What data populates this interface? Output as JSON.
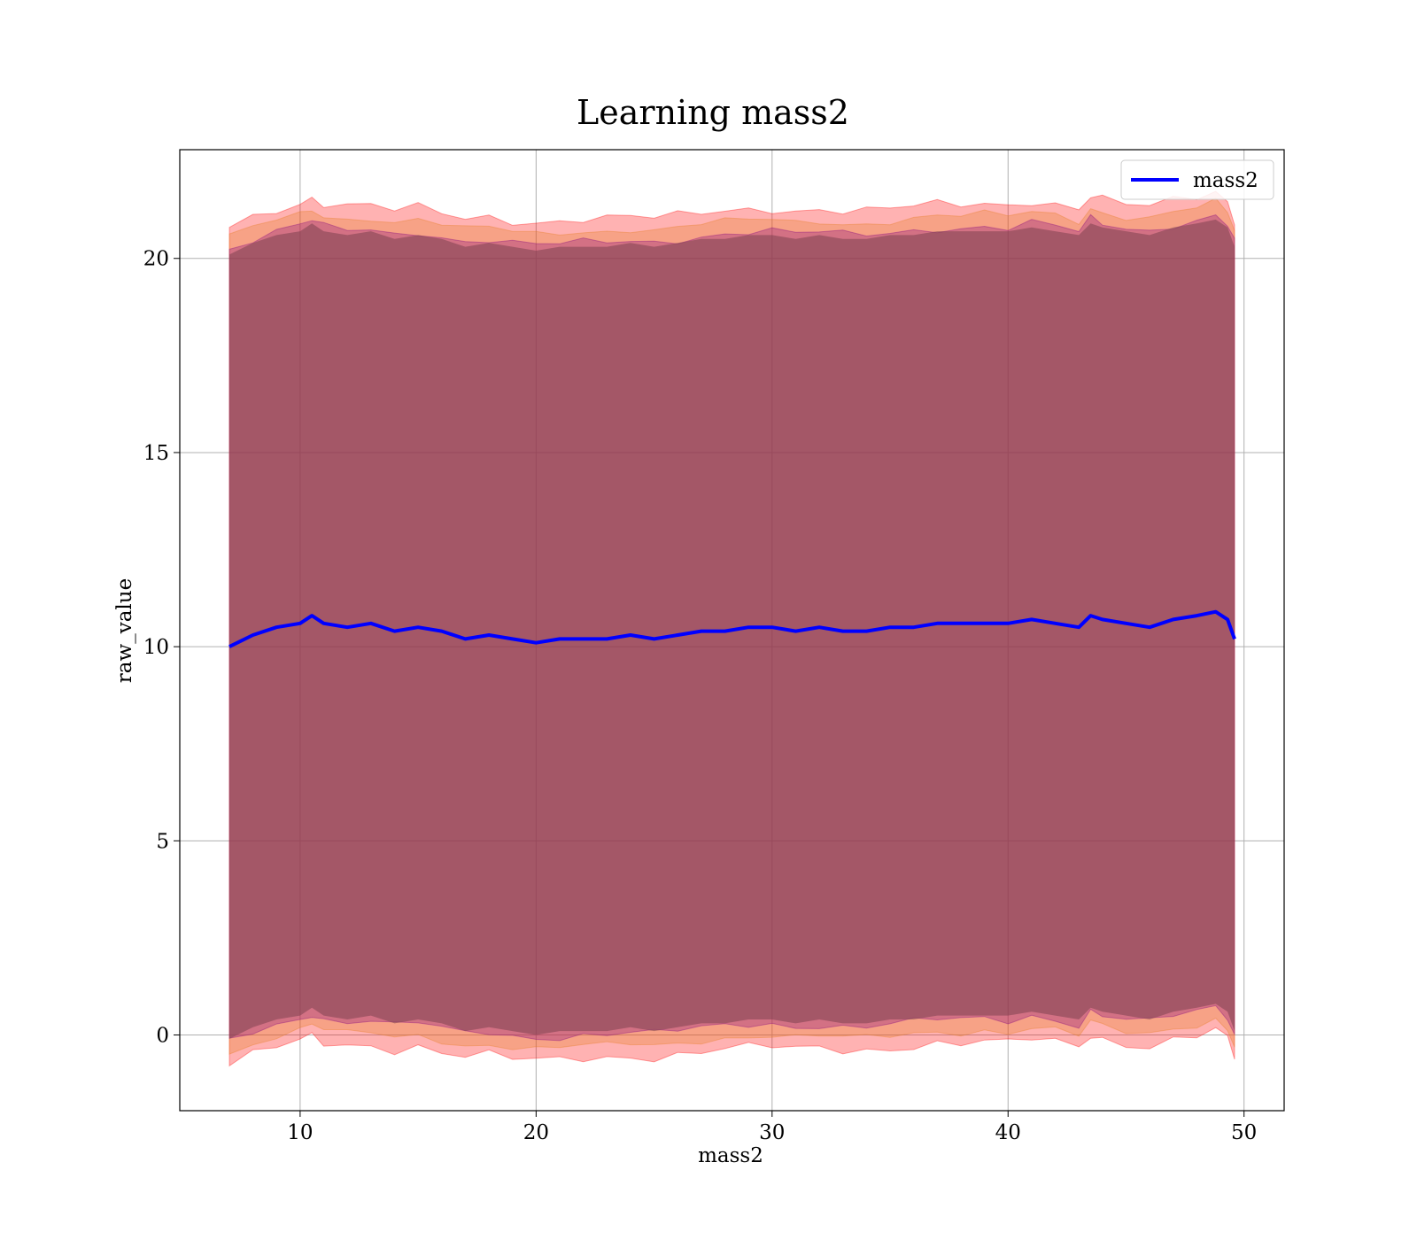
{
  "chart_data": {
    "type": "line",
    "title": "Learning mass2",
    "xlabel": "mass2",
    "ylabel": "raw_value",
    "xlim": [
      4.9,
      51.7
    ],
    "ylim": [
      -1.95,
      22.8
    ],
    "x_ticks": [
      10,
      20,
      30,
      40,
      50
    ],
    "y_ticks": [
      0,
      5,
      10,
      15,
      20
    ],
    "grid": true,
    "legend": {
      "placement": "top-right",
      "entries": [
        "mass2"
      ]
    },
    "colors": {
      "line": "#0000ff",
      "band_outer": "#ff0000",
      "band_middle": "#e67e22",
      "band_inner": "#800080"
    },
    "series": [
      {
        "name": "mass2",
        "x": [
          7.0,
          8.0,
          9.0,
          10.0,
          10.5,
          11.0,
          12.0,
          13.0,
          14.0,
          15.0,
          16.0,
          17.0,
          18.0,
          19.0,
          20.0,
          21.0,
          22.0,
          23.0,
          24.0,
          25.0,
          26.0,
          27.0,
          28.0,
          29.0,
          30.0,
          31.0,
          32.0,
          33.0,
          34.0,
          35.0,
          36.0,
          37.0,
          38.0,
          39.0,
          40.0,
          41.0,
          42.0,
          43.0,
          43.5,
          44.0,
          45.0,
          46.0,
          47.0,
          48.0,
          48.8,
          49.3,
          49.6
        ],
        "y": [
          10.0,
          10.3,
          10.5,
          10.6,
          10.8,
          10.6,
          10.5,
          10.6,
          10.4,
          10.5,
          10.4,
          10.2,
          10.3,
          10.2,
          10.1,
          10.2,
          10.2,
          10.2,
          10.3,
          10.2,
          10.3,
          10.4,
          10.4,
          10.5,
          10.5,
          10.4,
          10.5,
          10.4,
          10.4,
          10.5,
          10.5,
          10.6,
          10.6,
          10.6,
          10.6,
          10.7,
          10.6,
          10.5,
          10.8,
          10.7,
          10.6,
          10.5,
          10.7,
          10.8,
          10.9,
          10.7,
          10.2
        ]
      }
    ],
    "bands": [
      {
        "name": "outer",
        "half_width": 10.8
      },
      {
        "name": "middle",
        "half_width": 10.5
      },
      {
        "name": "inner",
        "half_width": 10.2
      }
    ]
  }
}
